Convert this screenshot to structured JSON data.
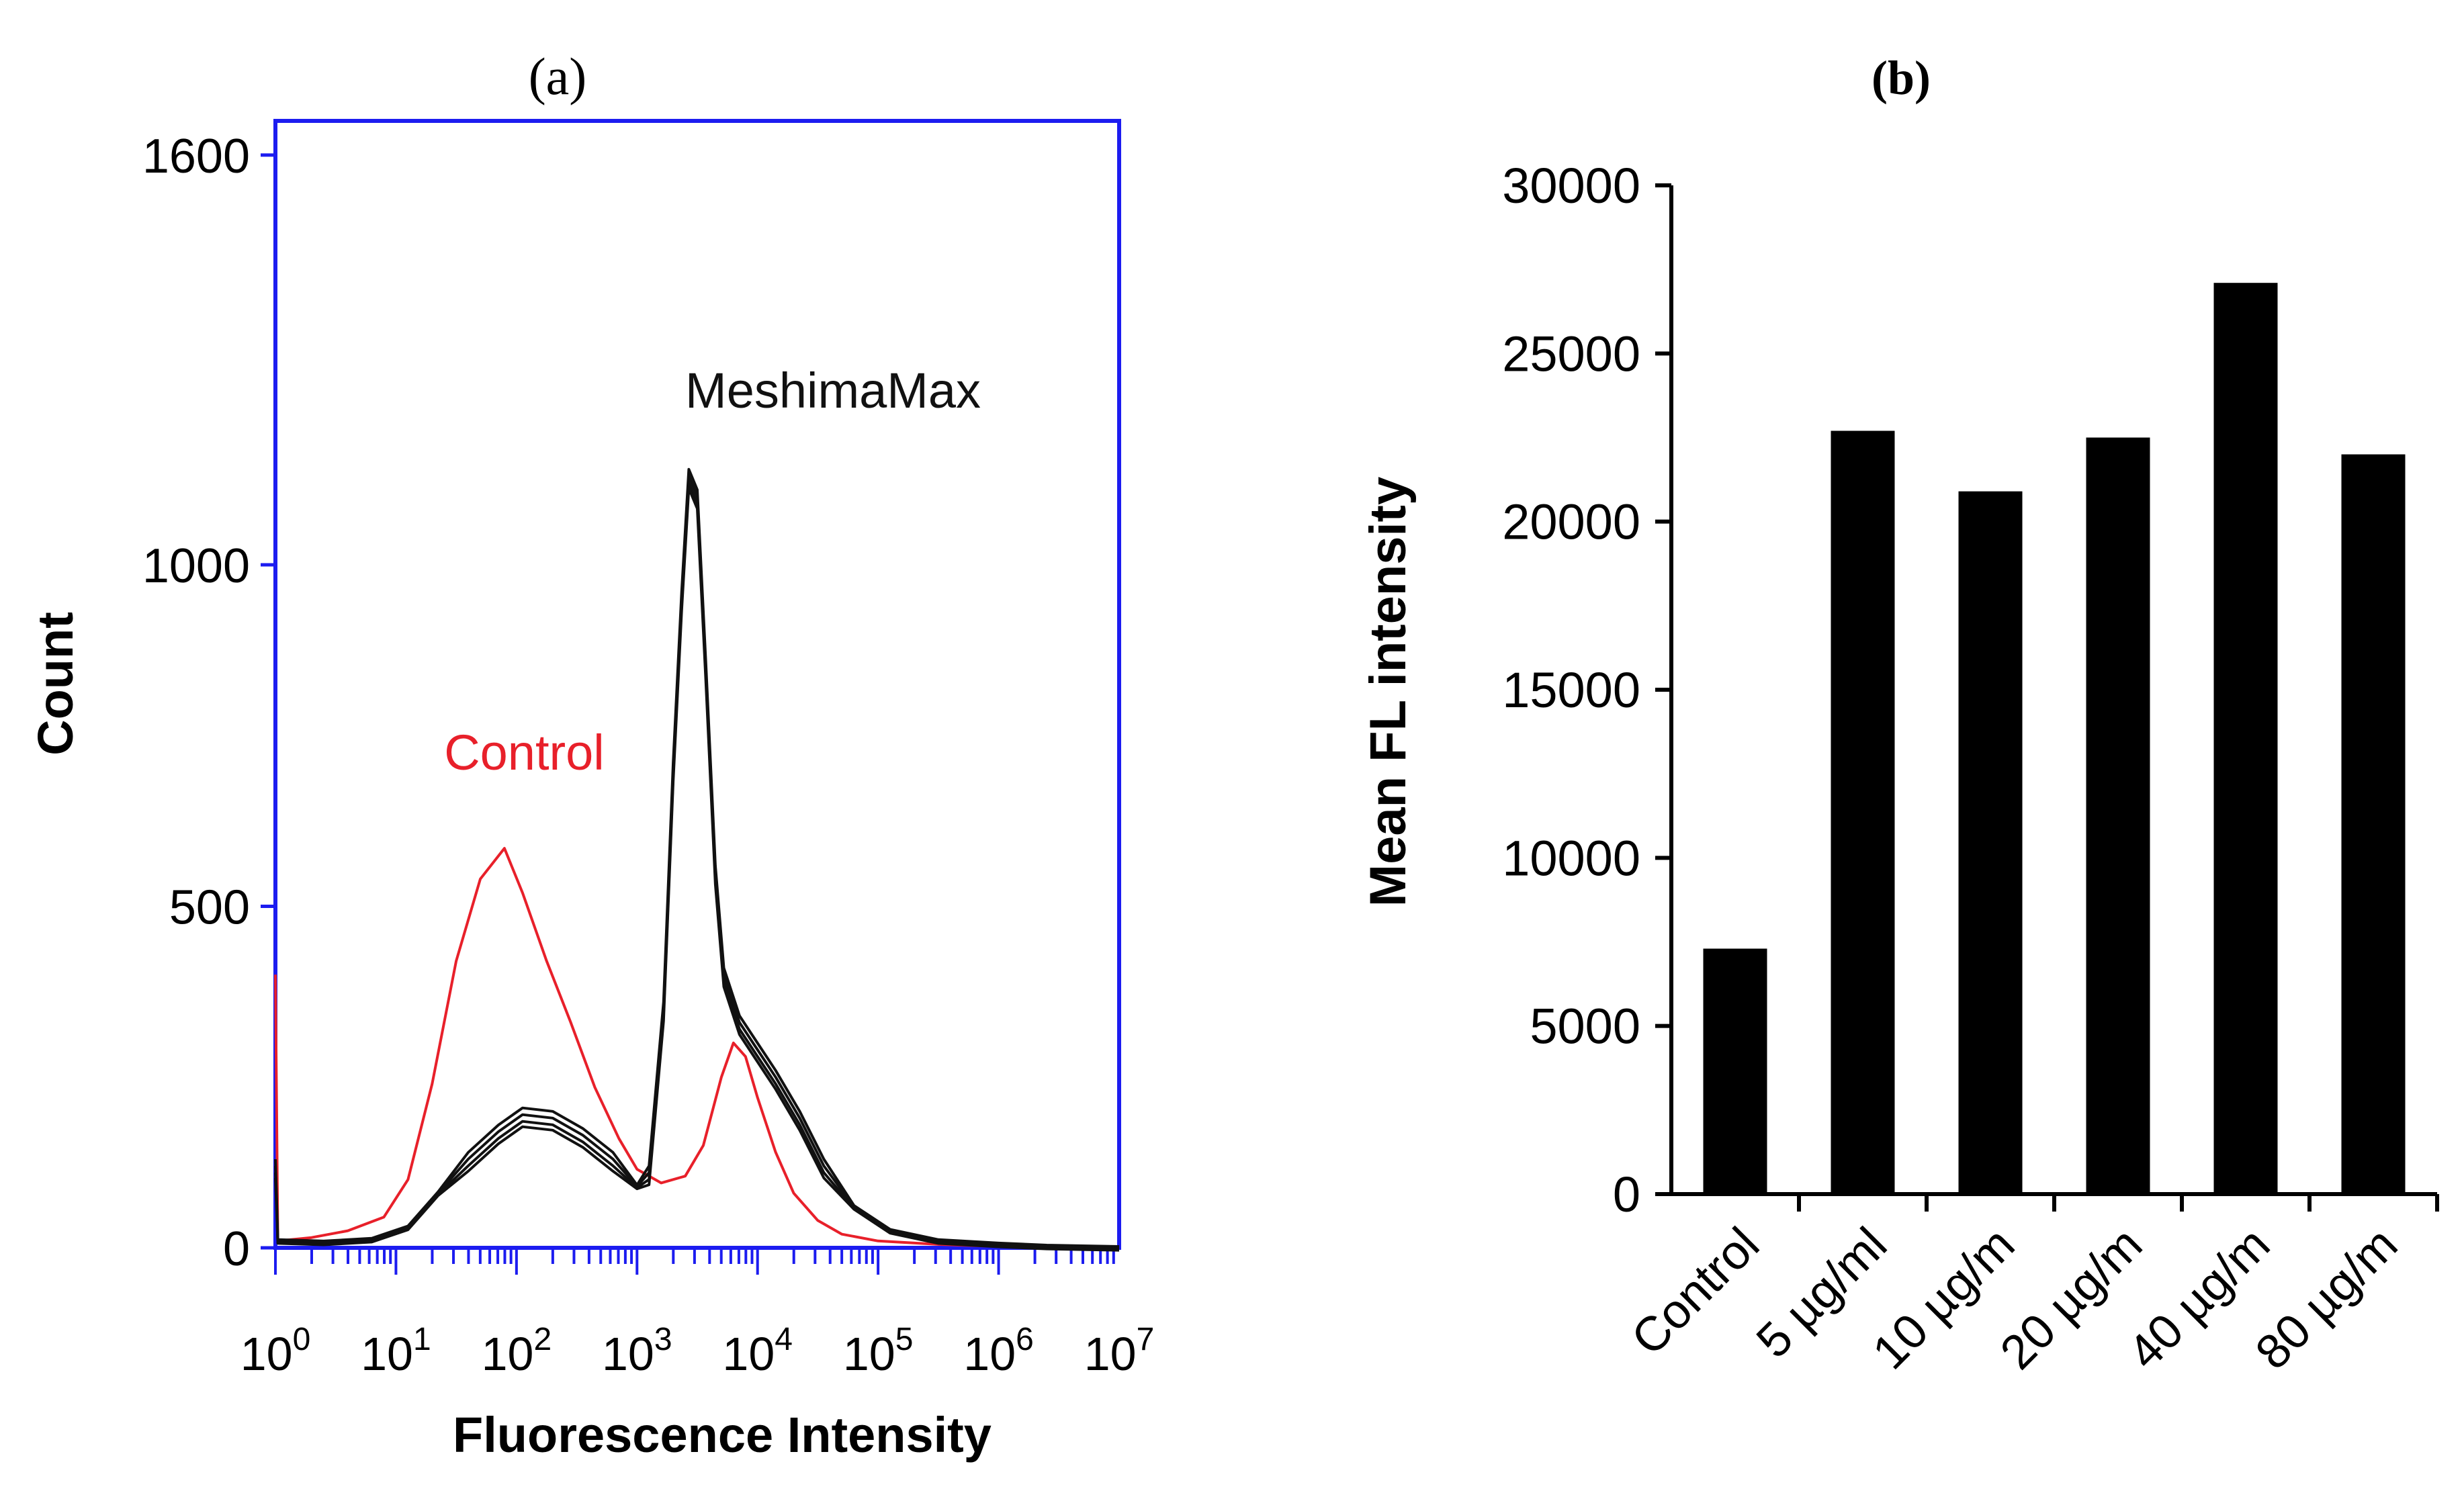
{
  "chart_data": [
    {
      "panel_label": "(a)",
      "type": "line",
      "subtype": "flow-cytometry histogram",
      "xlabel": "Fluorescence Intensity",
      "ylabel": "Count",
      "x_scale": "log10",
      "xlim": [
        0,
        7
      ],
      "ylim": [
        0,
        1650
      ],
      "x_tick_labels": [
        {
          "base": "10",
          "exp": "0",
          "x": 0
        },
        {
          "base": "10",
          "exp": "1",
          "x": 1
        },
        {
          "base": "10",
          "exp": "2",
          "x": 2
        },
        {
          "base": "10",
          "exp": "3",
          "x": 3
        },
        {
          "base": "10",
          "exp": "4",
          "x": 4
        },
        {
          "base": "10",
          "exp": "5",
          "x": 5
        },
        {
          "base": "10",
          "exp": "6",
          "x": 6
        },
        {
          "base": "10",
          "exp": "7",
          "x": 7
        }
      ],
      "y_ticks": [
        0,
        500,
        1000,
        1600
      ],
      "y_tick_labels": [
        "0",
        "500",
        "1000",
        "1600"
      ],
      "series": [
        {
          "name": "Control",
          "color": "#e8202a",
          "points": [
            [
              0,
              400
            ],
            [
              0.02,
              10
            ],
            [
              0.3,
              15
            ],
            [
              0.6,
              25
            ],
            [
              0.9,
              45
            ],
            [
              1.1,
              100
            ],
            [
              1.3,
              240
            ],
            [
              1.5,
              420
            ],
            [
              1.7,
              540
            ],
            [
              1.9,
              585
            ],
            [
              2.05,
              520
            ],
            [
              2.25,
              420
            ],
            [
              2.45,
              330
            ],
            [
              2.65,
              235
            ],
            [
              2.85,
              160
            ],
            [
              3.0,
              115
            ],
            [
              3.2,
              95
            ],
            [
              3.4,
              105
            ],
            [
              3.55,
              150
            ],
            [
              3.7,
              250
            ],
            [
              3.8,
              300
            ],
            [
              3.9,
              280
            ],
            [
              4.0,
              220
            ],
            [
              4.15,
              140
            ],
            [
              4.3,
              80
            ],
            [
              4.5,
              40
            ],
            [
              4.7,
              20
            ],
            [
              5.0,
              10
            ],
            [
              5.5,
              5
            ],
            [
              6.0,
              2
            ],
            [
              7.0,
              0
            ]
          ]
        },
        {
          "name": "MeshimaMax",
          "color": "#111111",
          "points": [
            [
              0,
              120
            ],
            [
              0.02,
              10
            ],
            [
              0.4,
              8
            ],
            [
              0.8,
              12
            ],
            [
              1.1,
              30
            ],
            [
              1.35,
              80
            ],
            [
              1.6,
              130
            ],
            [
              1.85,
              170
            ],
            [
              2.05,
              195
            ],
            [
              2.3,
              190
            ],
            [
              2.55,
              165
            ],
            [
              2.8,
              130
            ],
            [
              3.0,
              90
            ],
            [
              3.1,
              110
            ],
            [
              3.22,
              350
            ],
            [
              3.3,
              700
            ],
            [
              3.37,
              950
            ],
            [
              3.43,
              1130
            ],
            [
              3.5,
              1100
            ],
            [
              3.57,
              850
            ],
            [
              3.65,
              550
            ],
            [
              3.72,
              400
            ],
            [
              3.85,
              330
            ],
            [
              4.0,
              290
            ],
            [
              4.15,
              250
            ],
            [
              4.35,
              190
            ],
            [
              4.55,
              120
            ],
            [
              4.8,
              60
            ],
            [
              5.1,
              25
            ],
            [
              5.5,
              10
            ],
            [
              6.0,
              5
            ],
            [
              6.4,
              2
            ],
            [
              7.0,
              0
            ]
          ]
        }
      ],
      "annotations": [
        {
          "text": "Control",
          "color": "#e8202a",
          "x": 1.4,
          "y": 700
        },
        {
          "text": "MeshimaMax",
          "color": "#111111",
          "x": 3.4,
          "y": 1230
        }
      ]
    },
    {
      "panel_label": "(b)",
      "type": "bar",
      "title": "",
      "xlabel": "",
      "ylabel": "Mean FL intensity",
      "categories": [
        "Control",
        "5 µg/ml",
        "10 µg/m",
        "20 µg/m",
        "40 µg/m",
        "80 µg/m"
      ],
      "values": [
        7300,
        22700,
        20900,
        22500,
        27100,
        22000
      ],
      "ylim": [
        0,
        30000
      ],
      "y_ticks": [
        0,
        5000,
        10000,
        15000,
        20000,
        25000,
        30000
      ],
      "y_tick_labels": [
        "0",
        "5000",
        "10000",
        "15000",
        "20000",
        "25000",
        "30000"
      ],
      "bar_color": "#000000"
    }
  ]
}
